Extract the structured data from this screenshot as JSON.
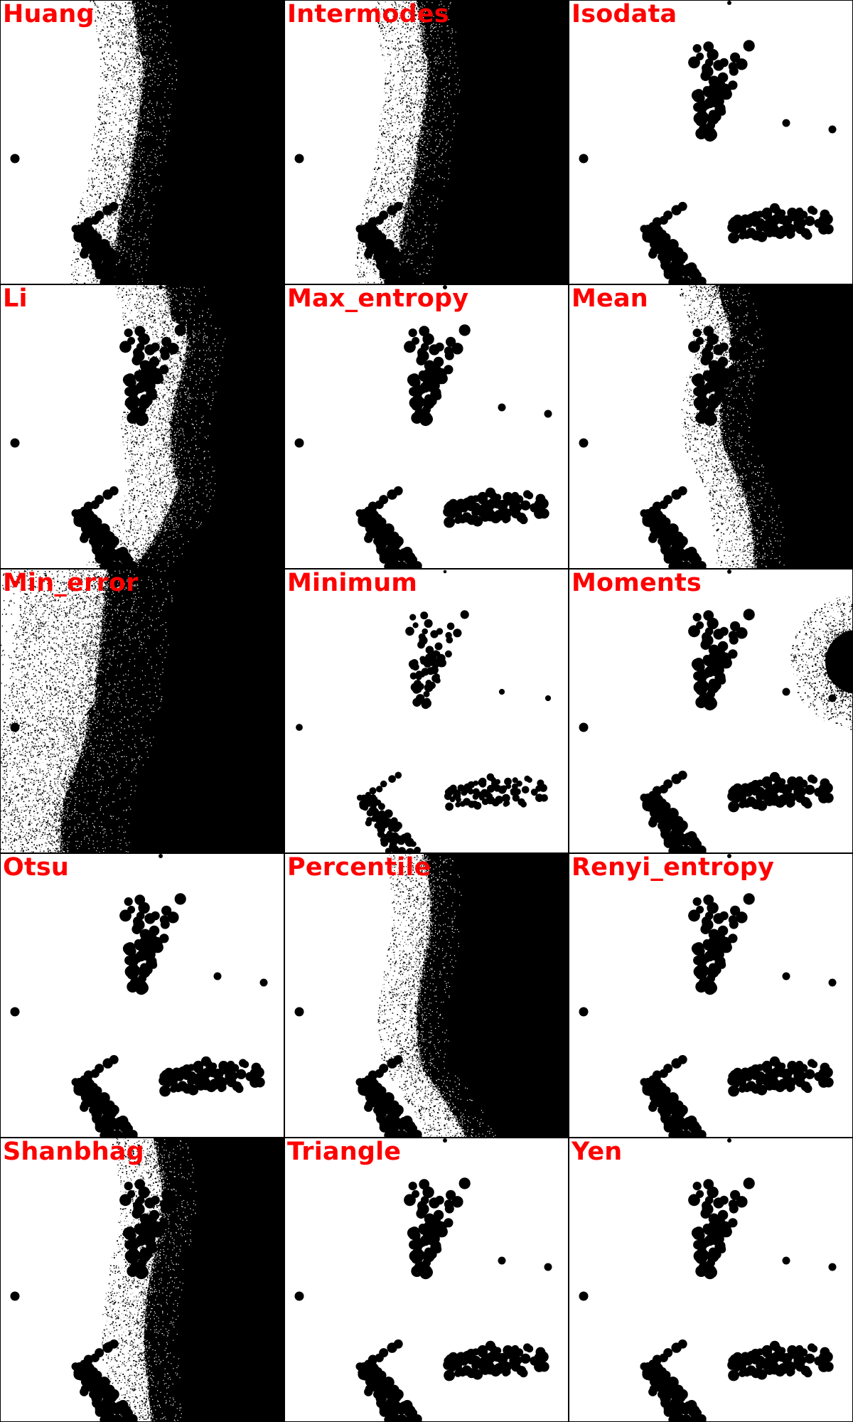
{
  "title_color": "#ff0000",
  "foreground_color": "#000000",
  "background_color": "#ffffff",
  "panels": [
    {
      "label": "Huang",
      "mask": "dark-right"
    },
    {
      "label": "Intermodes",
      "mask": "dark-right"
    },
    {
      "label": "Isodata",
      "mask": "clean"
    },
    {
      "label": "Li",
      "mask": "li"
    },
    {
      "label": "Max_entropy",
      "mask": "clean"
    },
    {
      "label": "Mean",
      "mask": "mean"
    },
    {
      "label": "Min_error",
      "mask": "min-error"
    },
    {
      "label": "Minimum",
      "mask": "minimum"
    },
    {
      "label": "Moments",
      "mask": "moments"
    },
    {
      "label": "Otsu",
      "mask": "clean"
    },
    {
      "label": "Percentile",
      "mask": "percentile"
    },
    {
      "label": "Renyi_entropy",
      "mask": "clean"
    },
    {
      "label": "Shanbhag",
      "mask": "shanbhag"
    },
    {
      "label": "Triangle",
      "mask": "clean"
    },
    {
      "label": "Yen",
      "mask": "clean"
    }
  ]
}
